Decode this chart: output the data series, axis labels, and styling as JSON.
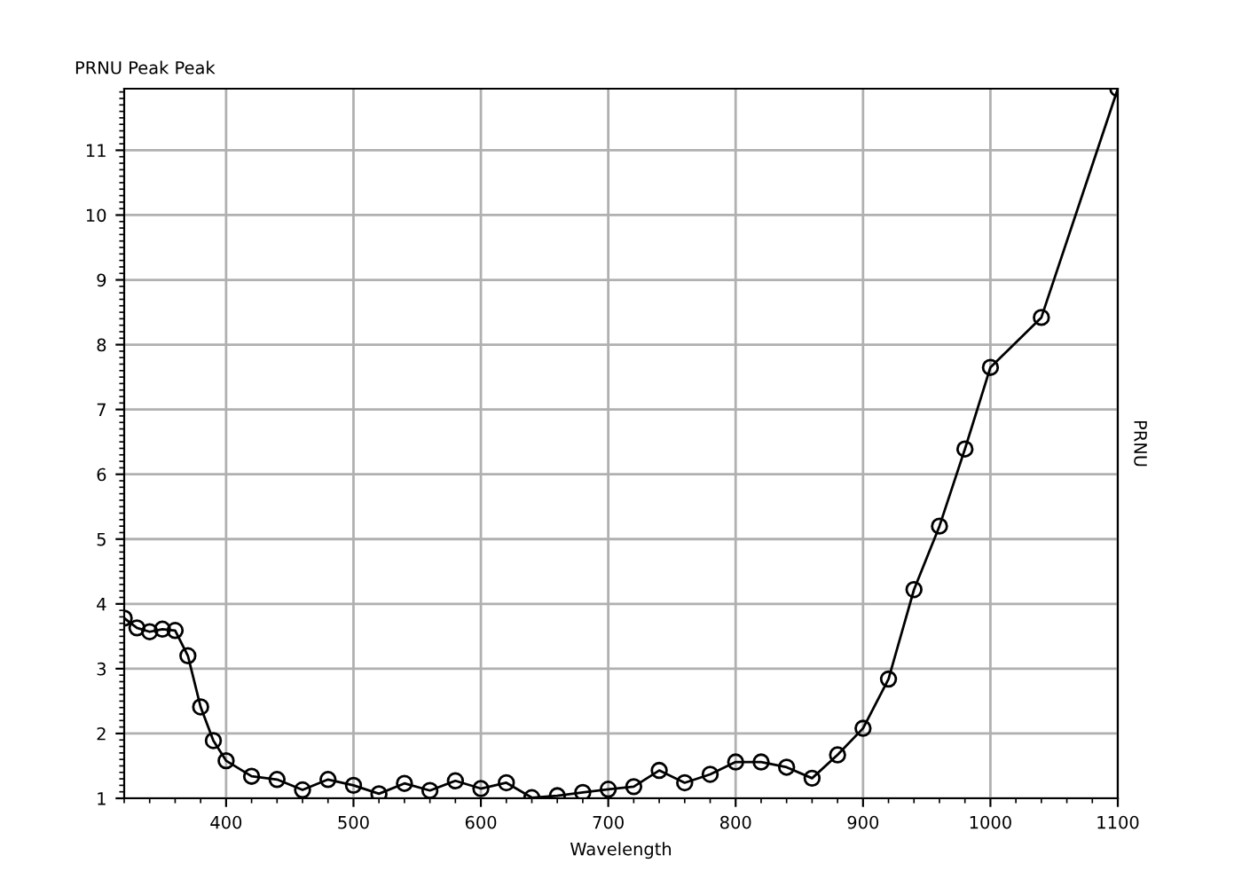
{
  "chart_data": {
    "type": "line",
    "title": "PRNU Peak Peak",
    "xlabel": "Wavelength",
    "ylabel": "PRNU",
    "x": [
      320,
      330,
      340,
      350,
      360,
      370,
      380,
      390,
      400,
      420,
      440,
      460,
      480,
      500,
      520,
      540,
      560,
      580,
      600,
      620,
      640,
      660,
      680,
      700,
      720,
      740,
      760,
      780,
      800,
      820,
      840,
      860,
      880,
      900,
      920,
      940,
      960,
      980,
      1000,
      1040,
      1100
    ],
    "series": [
      {
        "color": "#000000",
        "values": [
          3.78,
          3.63,
          3.57,
          3.61,
          3.59,
          3.2,
          2.41,
          1.89,
          1.58,
          1.34,
          1.29,
          1.13,
          1.29,
          1.2,
          1.07,
          1.23,
          1.12,
          1.27,
          1.15,
          1.24,
          1.01,
          1.04,
          1.09,
          1.14,
          1.18,
          1.43,
          1.24,
          1.37,
          1.56,
          1.56,
          1.48,
          1.31,
          1.67,
          2.08,
          2.84,
          4.22,
          5.2,
          6.39,
          7.65,
          8.42,
          11.95
        ]
      }
    ],
    "xlim": [
      320,
      1100
    ],
    "ylim": [
      1,
      11.95
    ],
    "xticks": [
      400,
      500,
      600,
      700,
      800,
      900,
      1000,
      1100
    ],
    "yticks": [
      1,
      2,
      3,
      4,
      5,
      6,
      7,
      8,
      9,
      10,
      11
    ],
    "grid": true,
    "marker": "circle",
    "line_style": "solid"
  }
}
